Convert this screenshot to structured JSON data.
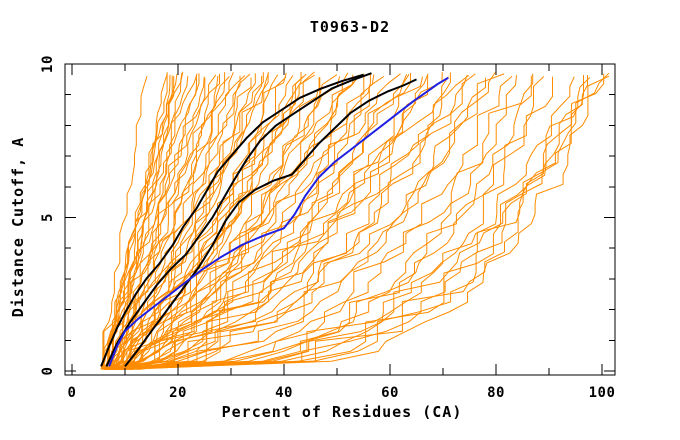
{
  "chart_data": {
    "type": "line",
    "title": "T0963-D2",
    "xlabel": "Percent of Residues (CA)",
    "ylabel": "Distance Cutoff, A",
    "xlim": [
      -1.32,
      102.45
    ],
    "ylim": [
      -0.13,
      10.0
    ],
    "x_axis": {
      "major_ticks": [
        0,
        20,
        40,
        60,
        80,
        100
      ],
      "major_labels": [
        "0",
        "20",
        "40",
        "60",
        "80",
        "100"
      ],
      "minor_ticks": [
        10,
        30,
        50,
        70,
        90
      ]
    },
    "y_axis": {
      "major_ticks": [
        0,
        5,
        10
      ],
      "major_labels": [
        "0",
        "5",
        "10"
      ],
      "minor_ticks": [
        1,
        2,
        3,
        4,
        6,
        7,
        8,
        9
      ]
    },
    "grid": false,
    "legend": "none",
    "colors": {
      "model": "#ff8c00",
      "reference": "#000000",
      "highlight": "#2020e0",
      "axis": "#000000",
      "background": "#ffffff"
    },
    "series": [
      {
        "name": "reference-black-1",
        "color": "#000000",
        "width": 2,
        "points": [
          [
            5.5,
            0.15
          ],
          [
            7,
            0.8
          ],
          [
            8.5,
            1.4
          ],
          [
            10,
            1.9
          ],
          [
            12,
            2.5
          ],
          [
            14,
            3.0
          ],
          [
            16.5,
            3.5
          ],
          [
            19,
            4.1
          ],
          [
            21,
            4.7
          ],
          [
            23.5,
            5.3
          ],
          [
            25.5,
            5.9
          ],
          [
            27.5,
            6.5
          ],
          [
            30,
            7.0
          ],
          [
            33,
            7.6
          ],
          [
            36,
            8.1
          ],
          [
            39.5,
            8.5
          ],
          [
            43,
            8.9
          ],
          [
            47,
            9.2
          ],
          [
            51,
            9.45
          ],
          [
            55,
            9.65
          ]
        ]
      },
      {
        "name": "reference-black-2",
        "color": "#000000",
        "width": 2,
        "points": [
          [
            6.5,
            0.15
          ],
          [
            8.5,
            0.9
          ],
          [
            11,
            1.6
          ],
          [
            13.5,
            2.2
          ],
          [
            16,
            2.8
          ],
          [
            18.5,
            3.3
          ],
          [
            21.5,
            3.8
          ],
          [
            24,
            4.4
          ],
          [
            26.5,
            5.0
          ],
          [
            28.5,
            5.6
          ],
          [
            30.5,
            6.2
          ],
          [
            33,
            6.9
          ],
          [
            35.5,
            7.5
          ],
          [
            38.5,
            8.0
          ],
          [
            42,
            8.4
          ],
          [
            45.5,
            8.8
          ],
          [
            49,
            9.2
          ],
          [
            52.5,
            9.45
          ],
          [
            56.5,
            9.7
          ]
        ]
      },
      {
        "name": "reference-black-3",
        "color": "#000000",
        "width": 2,
        "points": [
          [
            10,
            0.15
          ],
          [
            12.5,
            0.7
          ],
          [
            15,
            1.3
          ],
          [
            18,
            2.0
          ],
          [
            21,
            2.7
          ],
          [
            24,
            3.4
          ],
          [
            26.5,
            4.1
          ],
          [
            29,
            4.9
          ],
          [
            31.5,
            5.5
          ],
          [
            34.5,
            5.9
          ],
          [
            38,
            6.2
          ],
          [
            41.5,
            6.4
          ],
          [
            44,
            6.9
          ],
          [
            46.5,
            7.4
          ],
          [
            49.5,
            7.9
          ],
          [
            52.5,
            8.4
          ],
          [
            56,
            8.8
          ],
          [
            59.5,
            9.1
          ],
          [
            62.5,
            9.3
          ],
          [
            65,
            9.5
          ]
        ]
      },
      {
        "name": "highlight-blue",
        "color": "#2020e0",
        "width": 2,
        "points": [
          [
            7,
            0.15
          ],
          [
            8.5,
            0.8
          ],
          [
            10,
            1.3
          ],
          [
            12.5,
            1.7
          ],
          [
            15.5,
            2.1
          ],
          [
            18.5,
            2.5
          ],
          [
            21.5,
            2.9
          ],
          [
            24.5,
            3.3
          ],
          [
            28,
            3.7
          ],
          [
            32,
            4.1
          ],
          [
            36,
            4.4
          ],
          [
            40,
            4.65
          ],
          [
            42,
            5.1
          ],
          [
            44,
            5.7
          ],
          [
            46.5,
            6.3
          ],
          [
            49.5,
            6.8
          ],
          [
            52.5,
            7.2
          ],
          [
            55.5,
            7.6
          ],
          [
            58.5,
            8.0
          ],
          [
            61.5,
            8.4
          ],
          [
            64.5,
            8.8
          ],
          [
            67,
            9.1
          ],
          [
            69,
            9.35
          ],
          [
            71,
            9.55
          ]
        ]
      }
    ],
    "orange_models": {
      "description": "unlabeled server-model curves; each entry = [x_at_y0, x_at_ytop, shape_exponent]",
      "seed": 20963,
      "y_top": 9.65,
      "lines": [
        [
          5.5,
          14,
          1.0
        ],
        [
          5.8,
          18.5,
          0.95
        ],
        [
          6,
          19.5,
          1.1
        ],
        [
          6.5,
          20.5,
          1.05
        ],
        [
          6,
          18,
          1.0
        ],
        [
          7,
          19,
          0.9
        ],
        [
          5.5,
          20,
          1.1
        ],
        [
          6.2,
          21,
          1.0
        ],
        [
          6.8,
          22,
          0.95
        ],
        [
          5.6,
          23,
          1.05
        ],
        [
          6.4,
          24,
          1.0
        ],
        [
          7.2,
          25,
          0.9
        ],
        [
          5.9,
          26,
          1.1
        ],
        [
          6.6,
          27,
          1.0
        ],
        [
          7.4,
          28,
          0.95
        ],
        [
          6.1,
          29,
          1.05
        ],
        [
          6.9,
          30,
          0.9
        ],
        [
          7.6,
          31,
          1.0
        ],
        [
          7.8,
          20,
          1.0
        ],
        [
          8.1,
          24,
          0.95
        ],
        [
          8.4,
          28,
          0.9
        ],
        [
          8.7,
          32,
          0.85
        ],
        [
          9.1,
          36,
          0.8
        ],
        [
          9.4,
          44,
          0.75
        ],
        [
          5.7,
          32,
          0.85
        ],
        [
          6.3,
          34,
          0.8
        ],
        [
          7,
          36,
          0.75
        ],
        [
          6,
          38,
          0.9
        ],
        [
          6.8,
          40,
          0.7
        ],
        [
          7.5,
          42,
          0.8
        ],
        [
          5.9,
          44,
          0.75
        ],
        [
          6.5,
          46,
          0.85
        ],
        [
          7.1,
          48,
          0.65
        ],
        [
          6.2,
          50,
          0.8
        ],
        [
          6.9,
          52,
          0.7
        ],
        [
          7.7,
          54,
          0.75
        ],
        [
          8,
          33,
          0.9
        ],
        [
          8.5,
          37,
          0.8
        ],
        [
          9,
          41,
          0.7
        ],
        [
          8.2,
          45,
          0.75
        ],
        [
          8.8,
          49,
          0.65
        ],
        [
          9.5,
          53,
          0.7
        ],
        [
          10,
          35,
          0.85
        ],
        [
          10.5,
          43,
          0.7
        ],
        [
          11,
          47,
          0.6
        ],
        [
          9.2,
          39,
          0.75
        ],
        [
          9.8,
          55,
          0.8
        ],
        [
          10.2,
          58,
          0.75
        ],
        [
          11,
          61,
          0.7
        ],
        [
          11.5,
          64,
          0.65
        ],
        [
          12,
          67,
          0.6
        ],
        [
          10.8,
          71,
          0.55
        ],
        [
          11.2,
          75,
          0.5
        ],
        [
          12.5,
          79,
          0.45
        ],
        [
          6,
          56,
          0.6
        ],
        [
          6.6,
          58,
          0.55
        ],
        [
          7.2,
          60,
          0.65
        ],
        [
          6.3,
          62,
          0.5
        ],
        [
          7,
          64,
          0.6
        ],
        [
          7.8,
          66,
          0.55
        ],
        [
          6.1,
          68,
          0.5
        ],
        [
          6.7,
          70,
          0.6
        ],
        [
          7.3,
          72,
          0.45
        ],
        [
          6.4,
          74,
          0.55
        ],
        [
          7.1,
          76,
          0.5
        ],
        [
          7.9,
          78,
          0.45
        ],
        [
          6.2,
          80,
          0.4
        ],
        [
          6.8,
          82,
          0.35
        ],
        [
          7.5,
          84,
          0.3
        ],
        [
          6.5,
          86,
          0.38
        ],
        [
          7.2,
          88,
          0.32
        ],
        [
          8,
          90,
          0.28
        ],
        [
          6.6,
          92,
          0.35
        ],
        [
          7.4,
          94,
          0.3
        ],
        [
          8.2,
          96,
          0.26
        ],
        [
          6.9,
          98,
          0.32
        ],
        [
          7.6,
          100,
          0.27
        ],
        [
          8.4,
          100,
          0.24
        ],
        [
          9,
          99,
          0.3
        ],
        [
          9.6,
          97,
          0.26
        ]
      ]
    }
  }
}
